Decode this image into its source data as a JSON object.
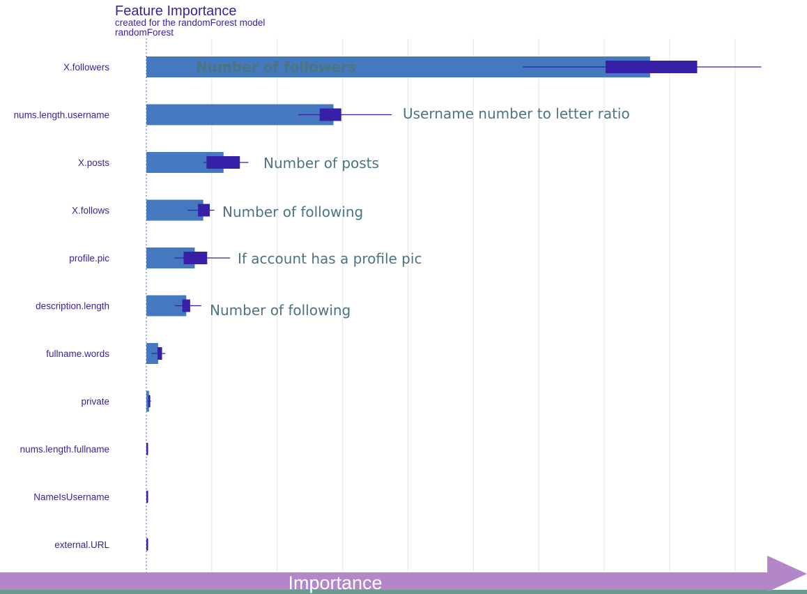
{
  "chart_data": {
    "type": "bar",
    "title": "Feature Importance",
    "subtitle": "created for the randomForest model",
    "model_label": "randomForest",
    "xlabel": "Importance",
    "categories": [
      "X.followers",
      "nums.length.username",
      "X.posts",
      "X.follows",
      "profile.pic",
      "description.length",
      "fullname.words",
      "private",
      "nums.length.fullname",
      "NameIsUsername",
      "external.URL"
    ],
    "values": [
      77,
      28.6,
      11.8,
      8.7,
      7.4,
      6.1,
      1.8,
      0.4,
      0.05,
      0.05,
      0.05
    ],
    "boxplots": [
      {
        "whisker_low": 57.5,
        "box_low": 70.2,
        "box_high": 84.2,
        "whisker_high": 94
      },
      {
        "whisker_low": 23.2,
        "box_low": 26.5,
        "box_high": 29.8,
        "whisker_high": 37.5
      },
      {
        "whisker_low": 8.7,
        "box_low": 9.2,
        "box_high": 14.3,
        "whisker_high": 15.6
      },
      {
        "whisker_low": 6.3,
        "box_low": 7.9,
        "box_high": 9.7,
        "whisker_high": 10.4
      },
      {
        "whisker_low": 4.3,
        "box_low": 5.7,
        "box_high": 9.3,
        "whisker_high": 12.8
      },
      {
        "whisker_low": 4.4,
        "box_low": 5.5,
        "box_high": 6.7,
        "whisker_high": 8.4
      },
      {
        "whisker_low": 0.8,
        "box_low": 1.7,
        "box_high": 2.4,
        "whisker_high": 2.9
      },
      {
        "whisker_low": 0.2,
        "box_low": 0.3,
        "box_high": 0.6,
        "whisker_high": 0.7
      },
      {
        "whisker_low": 0,
        "box_low": 0,
        "box_high": 0.1,
        "whisker_high": 0.1
      },
      {
        "whisker_low": 0,
        "box_low": 0,
        "box_high": 0.1,
        "whisker_high": 0.1
      },
      {
        "whisker_low": 0,
        "box_low": 0,
        "box_high": 0.1,
        "whisker_high": 0.1
      }
    ],
    "annotations": [
      {
        "category": "X.followers",
        "text": "Number of followers",
        "color": "#ffffff"
      },
      {
        "category": "nums.length.username",
        "text": "Username number to letter ratio",
        "color": "#4a7580"
      },
      {
        "category": "X.posts",
        "text": "Number of posts",
        "color": "#4a7580"
      },
      {
        "category": "X.follows",
        "text": "Number of following",
        "color": "#4a7580"
      },
      {
        "category": "profile.pic",
        "text": "If  account has a profile pic",
        "color": "#4a7580"
      },
      {
        "category": "description.length",
        "text": "Number of following",
        "color": "#4a7580"
      }
    ],
    "xlim": [
      0,
      98
    ],
    "grid": true,
    "legend": "none",
    "colors": {
      "bar": "#4478bf",
      "box": "#371fa8",
      "title": "#3d1e9b",
      "labels": "#3d1e9b",
      "grid": "#e4e4ea",
      "zero_line": "#5a7fc4",
      "arrow": "#b286c8",
      "arrow_label": "#ffffff",
      "bottom_strip": "#6a9a8f"
    }
  }
}
